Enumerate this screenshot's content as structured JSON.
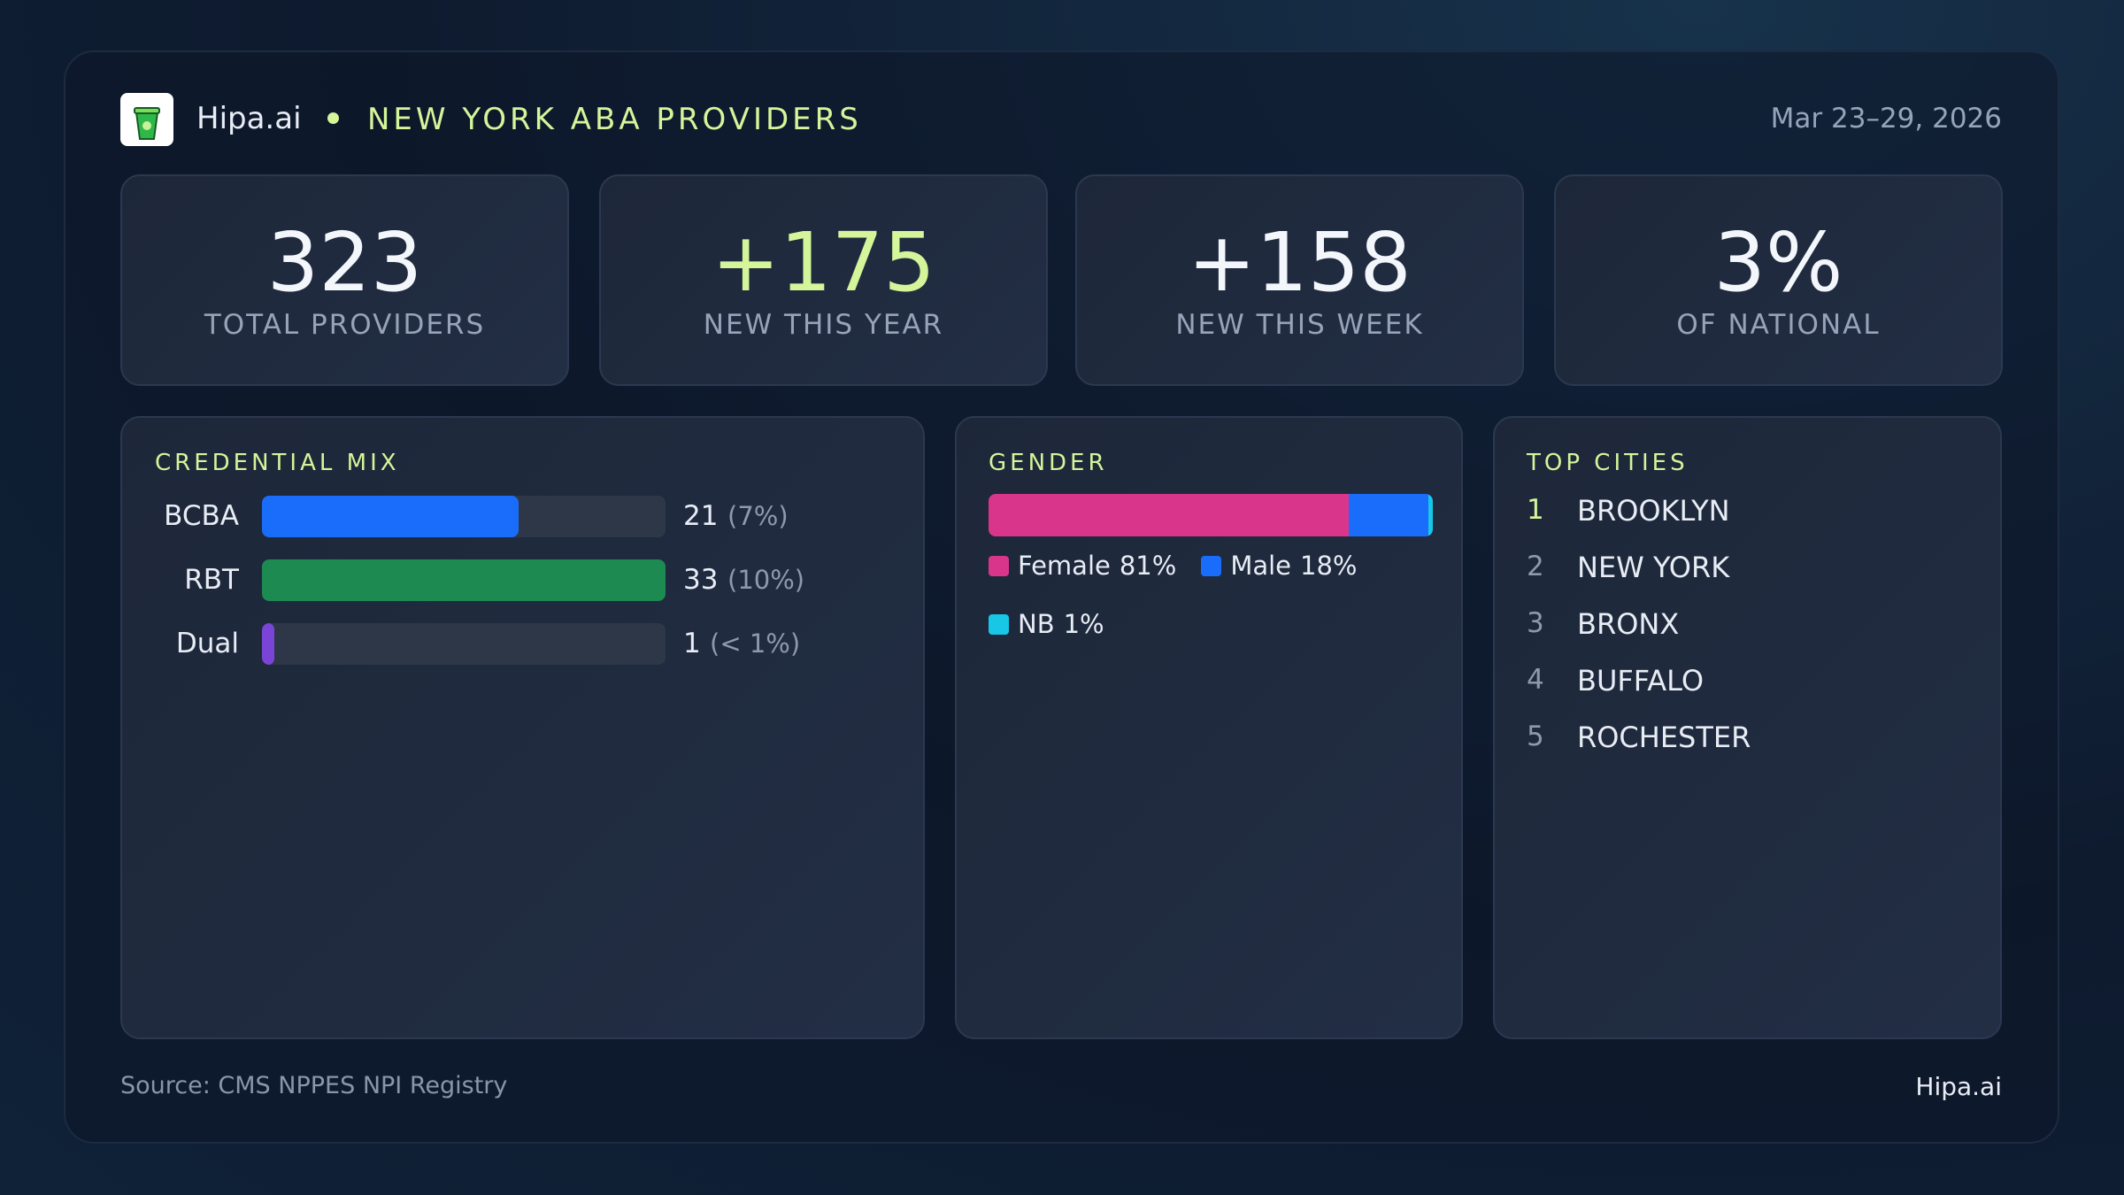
{
  "header": {
    "brand": "Hipa.ai",
    "title": "NEW YORK ABA PROVIDERS",
    "date": "Mar 23–29, 2026"
  },
  "kpis": [
    {
      "value": "323",
      "label": "TOTAL PROVIDERS",
      "accent": false
    },
    {
      "value": "+175",
      "label": "NEW THIS YEAR",
      "accent": true
    },
    {
      "value": "+158",
      "label": "NEW THIS WEEK",
      "accent": false
    },
    {
      "value": "3%",
      "label": "OF NATIONAL",
      "accent": false
    }
  ],
  "credential_mix": {
    "title": "CREDENTIAL MIX",
    "rows": [
      {
        "name": "BCBA",
        "count": 21,
        "share": "(7%)",
        "color": "#1a6dfb"
      },
      {
        "name": "RBT",
        "count": 33,
        "share": "(10%)",
        "color": "#1d8a52"
      },
      {
        "name": "Dual",
        "count": 1,
        "share": "(< 1%)",
        "color": "#7a45d6"
      }
    ]
  },
  "gender": {
    "title": "GENDER",
    "segments": [
      {
        "name": "Female",
        "value": 81,
        "value_label": "81%",
        "color": "#d9358a"
      },
      {
        "name": "Male",
        "value": 18,
        "value_label": "18%",
        "color": "#1a6dfb"
      },
      {
        "name": "NB",
        "value": 1,
        "value_label": "1%",
        "color": "#18c6e6"
      }
    ]
  },
  "top_cities": {
    "title": "TOP CITIES",
    "rows": [
      {
        "rank": 1,
        "city": "BROOKLYN"
      },
      {
        "rank": 2,
        "city": "NEW YORK"
      },
      {
        "rank": 3,
        "city": "BRONX"
      },
      {
        "rank": 4,
        "city": "BUFFALO"
      },
      {
        "rank": 5,
        "city": "ROCHESTER"
      }
    ]
  },
  "footer": {
    "source": "Source: CMS NPPES NPI Registry",
    "brand": "Hipa.ai"
  }
}
